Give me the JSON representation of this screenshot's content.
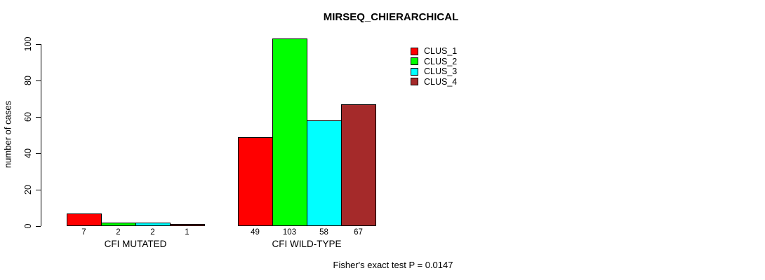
{
  "title": "MIRSEQ_CHIERARCHICAL",
  "chart_data": {
    "type": "bar",
    "title": "MIRSEQ_CHIERARCHICAL",
    "xlabel": "",
    "ylabel": "number of cases",
    "ylim": [
      0,
      103
    ],
    "yticks": [
      0,
      20,
      40,
      60,
      80,
      100
    ],
    "grid": false,
    "legend_position": "top-right",
    "categories": [
      "CFI MUTATED",
      "CFI WILD-TYPE"
    ],
    "series": [
      {
        "name": "CLUS_1",
        "color": "#FF0000",
        "values": [
          7,
          49
        ]
      },
      {
        "name": "CLUS_2",
        "color": "#00FF00",
        "values": [
          2,
          103
        ]
      },
      {
        "name": "CLUS_3",
        "color": "#00FFFF",
        "values": [
          2,
          58
        ]
      },
      {
        "name": "CLUS_4",
        "color": "#A52A2A",
        "values": [
          1,
          67
        ]
      }
    ],
    "bar_labels": [
      [
        "7",
        "2",
        "2",
        "1"
      ],
      [
        "49",
        "103",
        "58",
        "67"
      ]
    ],
    "annotation": "Fisher's exact test P = 0.0147"
  },
  "colors": {
    "axis": "#000000",
    "background": "#FFFFFF"
  }
}
